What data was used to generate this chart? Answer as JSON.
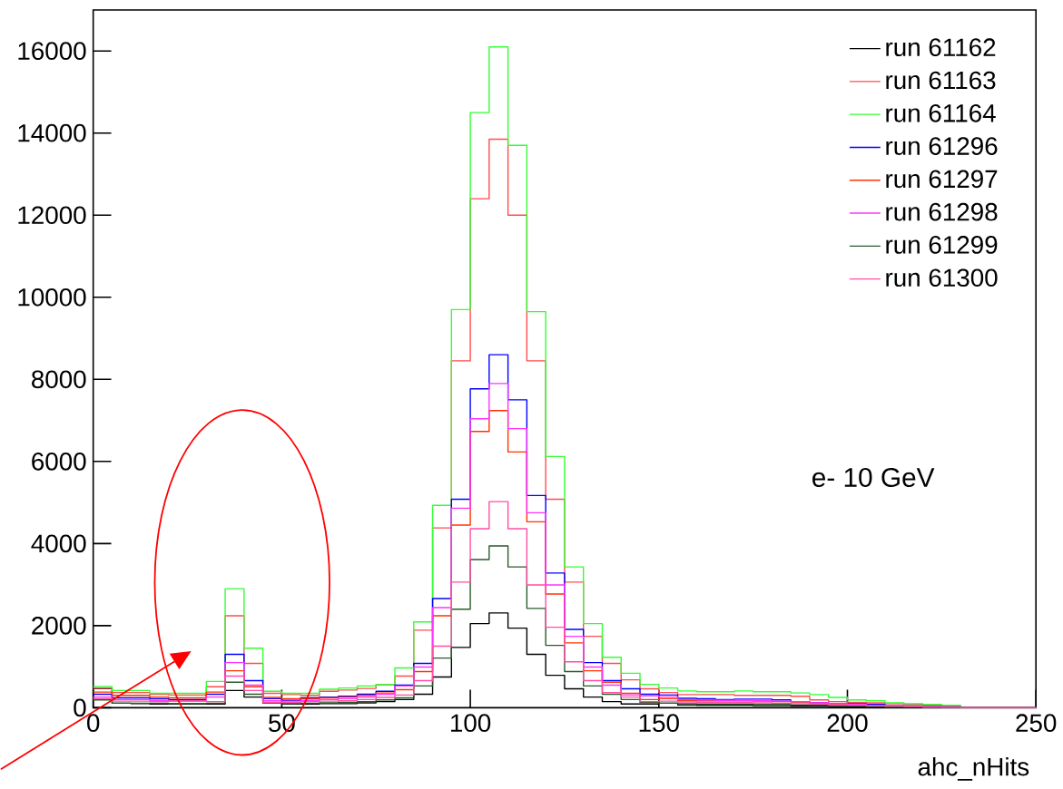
{
  "chart_data": {
    "type": "histogram",
    "xlabel": "ahc_nHits",
    "bins": [
      0,
      5,
      10,
      15,
      20,
      25,
      30,
      35,
      40,
      45,
      50,
      55,
      60,
      65,
      70,
      75,
      80,
      85,
      90,
      95,
      100,
      105,
      110,
      115,
      120,
      125,
      130,
      135,
      140,
      145,
      150,
      155,
      160,
      165,
      170,
      175,
      180,
      185,
      190,
      195,
      200,
      205,
      210,
      215,
      220,
      225,
      230,
      235,
      240,
      245,
      250
    ],
    "series": [
      {
        "name": "run 61162",
        "color": "#000000",
        "values": [
          470,
          110,
          100,
          90,
          90,
          90,
          90,
          420,
          260,
          110,
          90,
          90,
          100,
          100,
          120,
          150,
          200,
          330,
          750,
          1470,
          2050,
          2310,
          1940,
          1300,
          790,
          460,
          260,
          150,
          90,
          90,
          110,
          70,
          60,
          60,
          60,
          50,
          50,
          40,
          40,
          30,
          20,
          20,
          20,
          10,
          10,
          10,
          0,
          0,
          0,
          0
        ]
      },
      {
        "name": "run 61163",
        "color": "#ff4d4d",
        "values": [
          480,
          370,
          370,
          330,
          310,
          310,
          510,
          2240,
          1080,
          350,
          320,
          300,
          400,
          430,
          470,
          560,
          770,
          1890,
          4380,
          8450,
          12400,
          13850,
          12000,
          8450,
          5080,
          3060,
          1740,
          1080,
          680,
          460,
          370,
          320,
          320,
          320,
          300,
          300,
          300,
          280,
          190,
          150,
          130,
          120,
          100,
          80,
          60,
          50,
          0,
          0,
          0,
          0
        ]
      },
      {
        "name": "run 61164",
        "color": "#33ff33",
        "values": [
          520,
          420,
          420,
          350,
          350,
          350,
          640,
          2900,
          1450,
          400,
          350,
          350,
          450,
          480,
          530,
          570,
          970,
          2090,
          4930,
          9700,
          14500,
          16100,
          13700,
          9650,
          6120,
          3430,
          2050,
          1230,
          840,
          570,
          480,
          410,
          390,
          390,
          410,
          390,
          390,
          360,
          320,
          250,
          190,
          170,
          120,
          100,
          80,
          60,
          0,
          0,
          0,
          0
        ]
      },
      {
        "name": "run 61296",
        "color": "#0000ff",
        "values": [
          330,
          240,
          240,
          220,
          200,
          200,
          330,
          1300,
          660,
          220,
          180,
          240,
          260,
          280,
          330,
          400,
          550,
          1080,
          2660,
          5080,
          7770,
          8600,
          7500,
          5170,
          3280,
          1910,
          1100,
          660,
          460,
          330,
          310,
          230,
          220,
          200,
          210,
          210,
          190,
          150,
          120,
          100,
          100,
          80,
          50,
          40,
          30,
          20,
          0,
          0,
          0,
          0
        ]
      },
      {
        "name": "run 61297",
        "color": "#ff3300",
        "values": [
          380,
          300,
          300,
          260,
          240,
          240,
          380,
          900,
          510,
          250,
          220,
          220,
          240,
          260,
          300,
          360,
          440,
          880,
          2240,
          4450,
          6730,
          7240,
          6230,
          4530,
          2770,
          1580,
          900,
          620,
          350,
          200,
          220,
          180,
          170,
          170,
          170,
          160,
          150,
          140,
          110,
          90,
          80,
          60,
          40,
          30,
          20,
          10,
          0,
          0,
          0,
          0
        ]
      },
      {
        "name": "run 61298",
        "color": "#ff33ff",
        "values": [
          260,
          200,
          200,
          180,
          160,
          160,
          260,
          1100,
          550,
          170,
          160,
          180,
          200,
          220,
          260,
          330,
          530,
          990,
          2440,
          4860,
          7040,
          7900,
          6800,
          4750,
          2990,
          1740,
          990,
          550,
          310,
          290,
          260,
          200,
          190,
          180,
          180,
          170,
          160,
          150,
          120,
          100,
          80,
          60,
          40,
          30,
          20,
          10,
          0,
          0,
          0,
          0
        ]
      },
      {
        "name": "run 61299",
        "color": "#2a5a2a",
        "values": [
          190,
          110,
          110,
          110,
          100,
          100,
          110,
          620,
          330,
          110,
          100,
          110,
          120,
          130,
          150,
          190,
          240,
          530,
          1210,
          2400,
          3610,
          3940,
          3430,
          2420,
          1520,
          880,
          530,
          330,
          200,
          130,
          110,
          100,
          90,
          90,
          90,
          80,
          80,
          70,
          60,
          50,
          40,
          30,
          20,
          20,
          10,
          10,
          0,
          0,
          0,
          0
        ]
      },
      {
        "name": "run 61300",
        "color": "#ff4da6",
        "values": [
          220,
          160,
          160,
          150,
          170,
          170,
          150,
          770,
          420,
          130,
          130,
          150,
          160,
          170,
          200,
          250,
          310,
          660,
          1500,
          3060,
          4360,
          5020,
          4360,
          2990,
          1960,
          1120,
          660,
          370,
          260,
          150,
          160,
          140,
          130,
          130,
          130,
          120,
          110,
          100,
          90,
          70,
          60,
          50,
          40,
          30,
          20,
          10,
          0,
          0,
          0,
          0
        ]
      }
    ],
    "xlim": [
      0,
      250
    ],
    "xticks": [
      0,
      50,
      100,
      150,
      200,
      250
    ],
    "ylim": [
      0,
      17000
    ],
    "yticks": [
      0,
      2000,
      4000,
      6000,
      8000,
      10000,
      12000,
      14000,
      16000
    ],
    "legend": "top right",
    "grid": false,
    "annotations": [
      "e- 10 GeV"
    ]
  }
}
